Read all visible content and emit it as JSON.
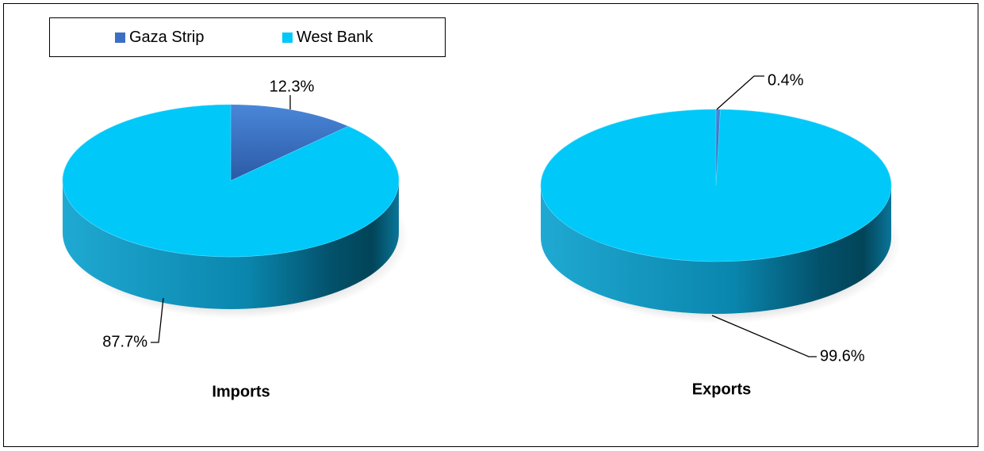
{
  "colors": {
    "gaza": "#3a6fc4",
    "west_bank": "#00c8f8",
    "west_bank_side_dark": "#003f55",
    "west_bank_side_light": "#22b6e0"
  },
  "legend": {
    "items": [
      {
        "label": "Gaza Strip",
        "color": "#3a6fc4"
      },
      {
        "label": "West Bank",
        "color": "#00c8f8"
      }
    ]
  },
  "chart_data": [
    {
      "type": "pie",
      "title": "Imports",
      "categories": [
        "Gaza Strip",
        "West Bank"
      ],
      "values": [
        12.3,
        87.7
      ],
      "data_labels": [
        "12.3%",
        "87.7%"
      ],
      "style": "3d"
    },
    {
      "type": "pie",
      "title": "Exports",
      "categories": [
        "Gaza Strip",
        "West Bank"
      ],
      "values": [
        0.4,
        99.6
      ],
      "data_labels": [
        "0.4%",
        "99.6%"
      ],
      "style": "3d"
    }
  ]
}
